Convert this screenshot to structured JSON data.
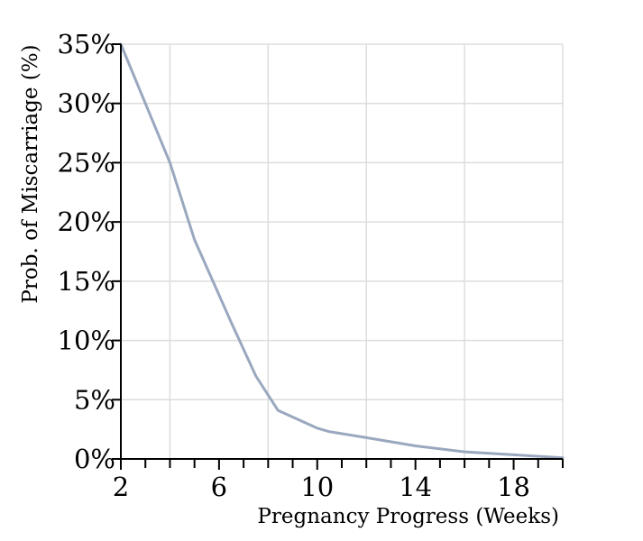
{
  "chart_data": {
    "type": "line",
    "xlabel": "Pregnancy Progress (Weeks)",
    "ylabel": "Prob. of Miscarriage (%)",
    "xlim": [
      2,
      20
    ],
    "ylim": [
      0,
      35
    ],
    "x_tick_labels": [
      "2",
      "6",
      "10",
      "14",
      "18"
    ],
    "x_tick_values": [
      2,
      6,
      10,
      14,
      18
    ],
    "x_minor_ticks": [
      2,
      3,
      4,
      5,
      6,
      7,
      8,
      9,
      10,
      11,
      12,
      13,
      14,
      15,
      16,
      17,
      18,
      19,
      20
    ],
    "y_tick_labels": [
      "0%",
      "5%",
      "10%",
      "15%",
      "20%",
      "25%",
      "30%",
      "35%"
    ],
    "y_tick_values": [
      0,
      5,
      10,
      15,
      20,
      25,
      30,
      35
    ],
    "x_grid": [
      4,
      8,
      12,
      16,
      20
    ],
    "grid": true,
    "series": [
      {
        "color": "#9aa8bf",
        "x": [
          2,
          4,
          5,
          6.5,
          7.5,
          8.4,
          10,
          10.5,
          12,
          14,
          16,
          18,
          20
        ],
        "y": [
          35,
          25,
          18.5,
          11.5,
          7,
          4.1,
          2.6,
          2.3,
          1.8,
          1.1,
          0.6,
          0.35,
          0.1
        ]
      }
    ]
  }
}
